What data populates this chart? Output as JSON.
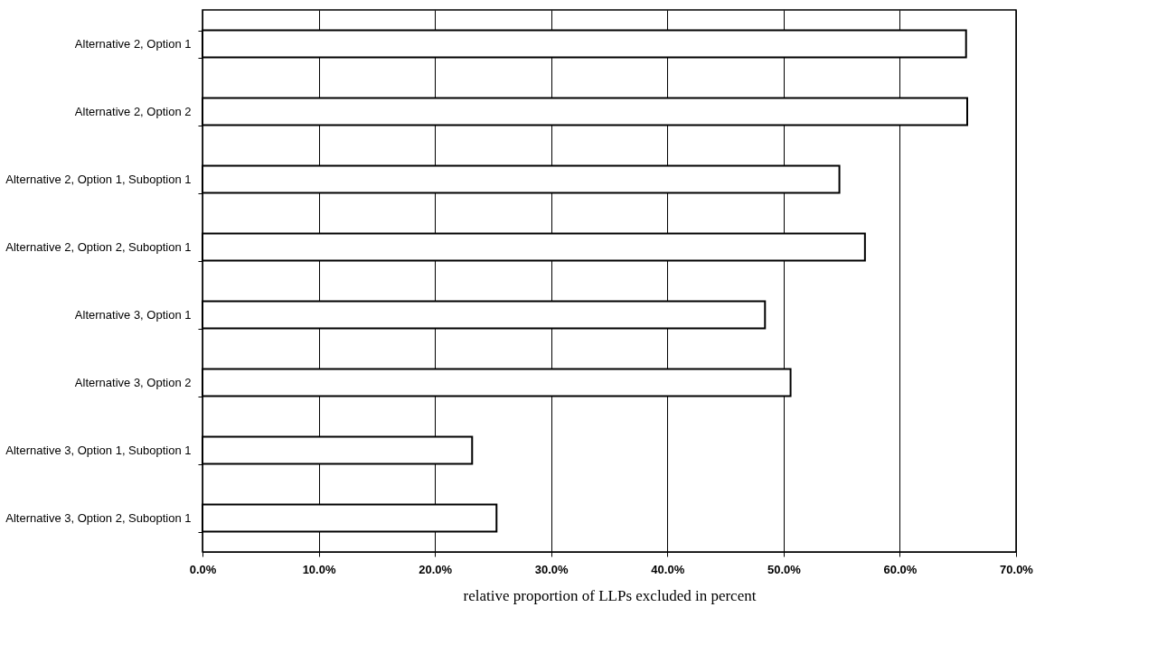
{
  "chart_data": {
    "type": "bar",
    "orientation": "horizontal",
    "xlabel": "relative proportion of LLPs excluded in percent",
    "categories": [
      "Alternative 2, Option 1",
      "Alternative 2, Option 2",
      "Alternative 2, Option 1, Suboption 1",
      "Alternative 2, Option 2, Suboption 1",
      "Alternative 3, Option 1",
      "Alternative 3, Option 2",
      "Alternative 3, Option 1, Suboption 1",
      "Alternative 3, Option 2, Suboption 1"
    ],
    "values": [
      65.7,
      65.8,
      54.8,
      57.0,
      48.4,
      50.6,
      23.2,
      25.3
    ],
    "color": "#ffffff",
    "xlim": [
      0,
      70
    ],
    "xticks": [
      {
        "value": 0,
        "label": "0.0%"
      },
      {
        "value": 10,
        "label": "10.0%"
      },
      {
        "value": 20,
        "label": "20.0%"
      },
      {
        "value": 30,
        "label": "30.0%"
      },
      {
        "value": 40,
        "label": "40.0%"
      },
      {
        "value": 50,
        "label": "50.0%"
      },
      {
        "value": 60,
        "label": "60.0%"
      },
      {
        "value": 70,
        "label": "70.0%"
      }
    ],
    "grid": "x"
  }
}
